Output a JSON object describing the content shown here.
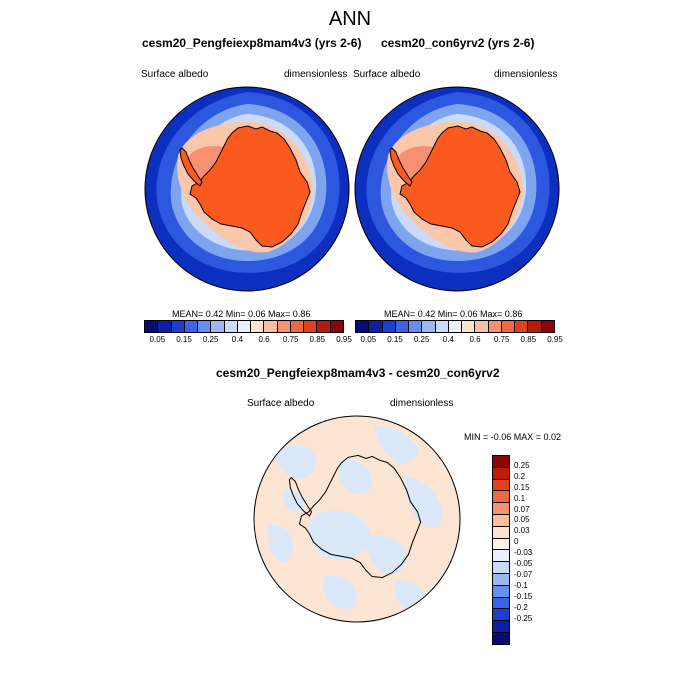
{
  "figure": {
    "title": "ANN"
  },
  "panels": [
    {
      "title": "cesm20_Pengfeiexp8mam4v3 (yrs 2-6)",
      "left_label": "Surface albedo",
      "right_label": "dimensionless",
      "stats": "MEAN=   0.42  Min=   0.06  Max=   0.86"
    },
    {
      "title": "cesm20_con6yrv2 (yrs 2-6)",
      "left_label": "Surface albedo",
      "right_label": "dimensionless",
      "stats": "MEAN=   0.42  Min=   0.06  Max=   0.86"
    }
  ],
  "colorbar_abs": {
    "colors": [
      "#0a0a78",
      "#0c1fa6",
      "#1b3fd0",
      "#3b63e6",
      "#6690f0",
      "#9bb8f5",
      "#c9dbf9",
      "#e9f0fb",
      "#fde2cf",
      "#fbbf9f",
      "#f6926c",
      "#f16840",
      "#e0401c",
      "#b31b0b",
      "#8a0707"
    ],
    "tick_labels": [
      "0.05",
      "0.15",
      "0.25",
      "0.4",
      "0.6",
      "0.75",
      "0.85",
      "0.95"
    ]
  },
  "diff_panel": {
    "title": "cesm20_Pengfeiexp8mam4v3 - cesm20_con6yrv2",
    "left_label": "Surface albedo",
    "right_label": "dimensionless",
    "stats": "MIN =  -0.06 MAX =   0.02"
  },
  "colorbar_diff": {
    "colors": [
      "#8a0707",
      "#c11b0b",
      "#e0401c",
      "#f16840",
      "#f6926c",
      "#fbbf9f",
      "#fde2cf",
      "#fdf0e6",
      "#e9f0fb",
      "#c9dbf9",
      "#9bb8f5",
      "#6690f0",
      "#3b63e6",
      "#1b3fd0",
      "#0c1fa6",
      "#0a0a78"
    ],
    "tick_labels": [
      "0.25",
      "0.2",
      "0.15",
      "0.1",
      "0.07",
      "0.05",
      "0.03",
      "0",
      "-0.03",
      "-0.05",
      "-0.07",
      "-0.1",
      "-0.15",
      "-0.2",
      "-0.25"
    ]
  },
  "map_colors": {
    "ocean_open": "#0c2fc0",
    "sea_ice_outer": "#2c57de",
    "sea_ice_mid": "#7fa4ef",
    "sea_ice_inner": "#c9dbf9",
    "ice_edge": "#fbc7aa",
    "ice_shelf": "#f69070",
    "continent": "#fb5a1e",
    "diff_pos": "#fce6d3",
    "diff_neg": "#dbe8fa",
    "coast": "#000000"
  }
}
